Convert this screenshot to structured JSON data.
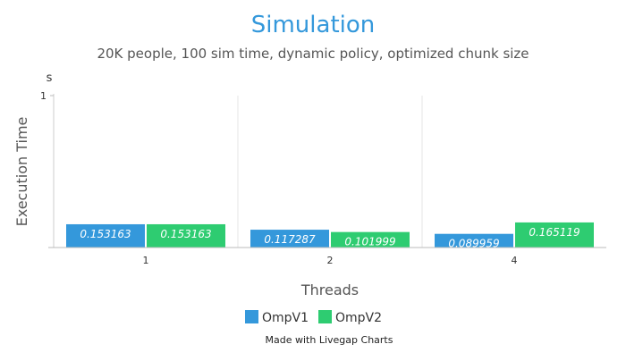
{
  "chart_data": {
    "type": "bar",
    "title": "Simulation",
    "subtitle": "20K people, 100 sim time, dynamic policy, optimized chunk size",
    "xlabel": "Threads",
    "ylabel": "Execution Time",
    "y_unit": "s",
    "ylim": [
      0,
      1
    ],
    "y_ticks": [
      "1"
    ],
    "categories": [
      "1",
      "2",
      "4"
    ],
    "series": [
      {
        "name": "OmpV1",
        "color": "#3498db",
        "values": [
          0.153163,
          0.117287,
          0.089959
        ]
      },
      {
        "name": "OmpV2",
        "color": "#2ecc71",
        "values": [
          0.153163,
          0.101999,
          0.165119
        ]
      }
    ],
    "data_labels": [
      [
        "0.153163",
        "0.117287",
        "0.089959"
      ],
      [
        "0.153163",
        "0.101999",
        "0.165119"
      ]
    ],
    "legend_position": "bottom-center",
    "grid": "vertical",
    "title_color": "#3498db",
    "credit": "Made with Livegap Charts"
  }
}
